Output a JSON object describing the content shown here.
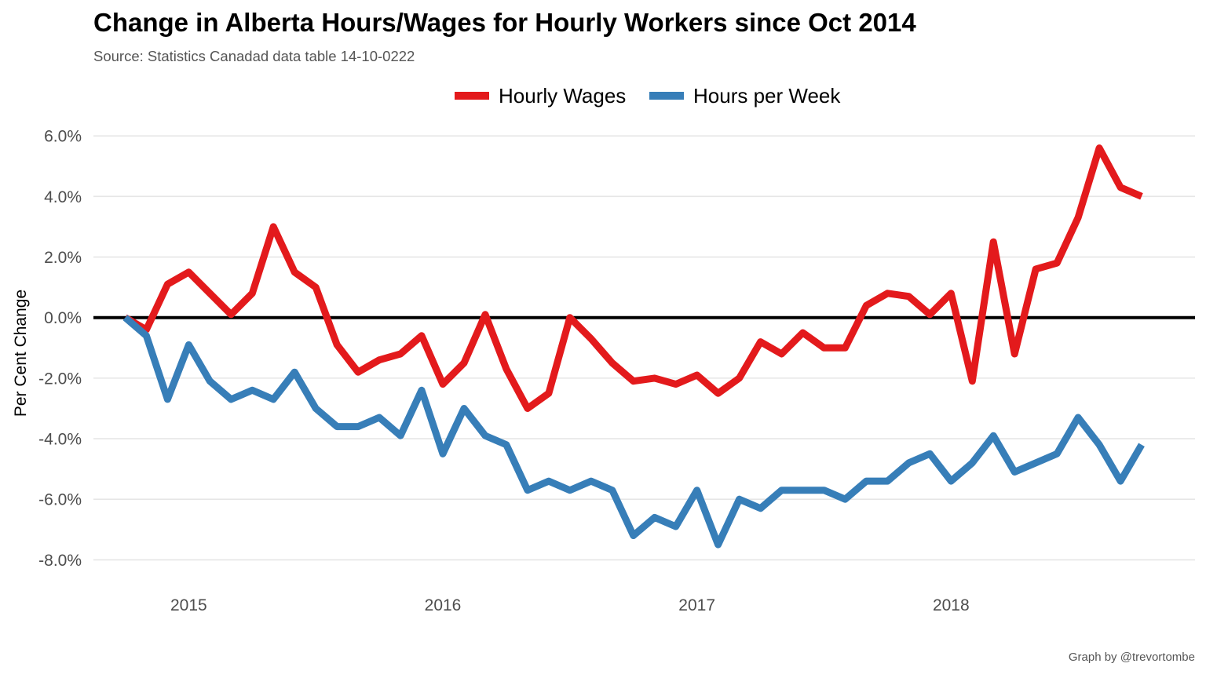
{
  "chart_data": {
    "type": "line",
    "title": "Change in Alberta Hours/Wages for Hourly Workers since Oct 2014",
    "subtitle": "Source: Statistics Canadad data table 14-10-0222",
    "caption": "Graph by @trevortombe",
    "ylabel": "Per Cent Change",
    "xlabel": "",
    "ylim": [
      -9.0,
      6.6
    ],
    "yticks": [
      -8,
      -6,
      -4,
      -2,
      0,
      2,
      4,
      6
    ],
    "ytick_labels": [
      "-8.0%",
      "-6.0%",
      "-4.0%",
      "-2.0%",
      "0.0%",
      "2.0%",
      "4.0%",
      "6.0%"
    ],
    "xticks": [
      2015,
      2016,
      2017,
      2018
    ],
    "xtick_labels": [
      "2015",
      "2016",
      "2017",
      "2018"
    ],
    "xlim": [
      2014.625,
      2018.96
    ],
    "x_start": "2014-10",
    "x_end": "2018-10",
    "legend_position": "top",
    "grid": true,
    "zero_line": true,
    "x": [
      "2014-10",
      "2014-11",
      "2014-12",
      "2015-01",
      "2015-02",
      "2015-03",
      "2015-04",
      "2015-05",
      "2015-06",
      "2015-07",
      "2015-08",
      "2015-09",
      "2015-10",
      "2015-11",
      "2015-12",
      "2016-01",
      "2016-02",
      "2016-03",
      "2016-04",
      "2016-05",
      "2016-06",
      "2016-07",
      "2016-08",
      "2016-09",
      "2016-10",
      "2016-11",
      "2016-12",
      "2017-01",
      "2017-02",
      "2017-03",
      "2017-04",
      "2017-05",
      "2017-06",
      "2017-07",
      "2017-08",
      "2017-09",
      "2017-10",
      "2017-11",
      "2017-12",
      "2018-01",
      "2018-02",
      "2018-03",
      "2018-04",
      "2018-05",
      "2018-06",
      "2018-07",
      "2018-08",
      "2018-09",
      "2018-10"
    ],
    "series": [
      {
        "name": "Hourly Wages",
        "color": "#e31a1c",
        "values": [
          0.0,
          -0.4,
          1.1,
          1.5,
          0.8,
          0.1,
          0.8,
          3.0,
          1.5,
          1.0,
          -0.9,
          -1.8,
          -1.4,
          -1.2,
          -0.6,
          -2.2,
          -1.5,
          0.1,
          -1.7,
          -3.0,
          -2.5,
          0.0,
          -0.7,
          -1.5,
          -2.1,
          -2.0,
          -2.2,
          -1.9,
          -2.5,
          -2.0,
          -0.8,
          -1.2,
          -0.5,
          -1.0,
          -1.0,
          0.4,
          0.8,
          0.7,
          0.1,
          0.8,
          -2.1,
          2.5,
          -1.2,
          1.6,
          1.8,
          3.3,
          5.6,
          4.3,
          4.0
        ]
      },
      {
        "name": "Hours per Week",
        "color": "#377eb8",
        "values": [
          0.0,
          -0.6,
          -2.7,
          -0.9,
          -2.1,
          -2.7,
          -2.4,
          -2.7,
          -1.8,
          -3.0,
          -3.6,
          -3.6,
          -3.3,
          -3.9,
          -2.4,
          -4.5,
          -3.0,
          -3.9,
          -4.2,
          -5.7,
          -5.4,
          -5.7,
          -5.4,
          -5.7,
          -7.2,
          -6.6,
          -6.9,
          -5.7,
          -7.5,
          -6.0,
          -6.3,
          -5.7,
          -5.7,
          -5.7,
          -6.0,
          -5.4,
          -5.4,
          -4.8,
          -4.5,
          -5.4,
          -4.8,
          -3.9,
          -5.1,
          -4.8,
          -4.5,
          -3.3,
          -4.2,
          -5.4,
          -4.2
        ]
      }
    ]
  }
}
